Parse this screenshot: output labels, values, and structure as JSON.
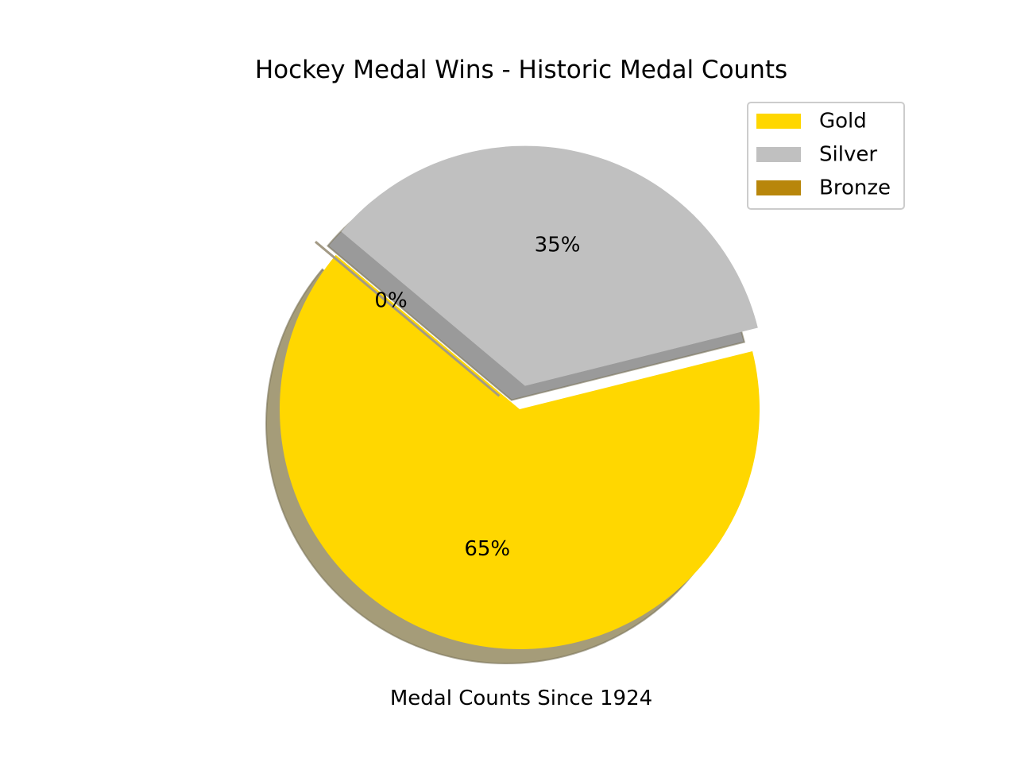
{
  "chart_data": {
    "type": "pie",
    "title": "Hockey Medal Wins - Historic Medal Counts",
    "xlabel": "Medal Counts Since 1924",
    "ylabel": "",
    "start_angle_deg": 140,
    "shadow": true,
    "legend_placement": "top-right",
    "slices": [
      {
        "label": "Gold",
        "value": 65,
        "pct_label": "65%",
        "color": "#FFD700",
        "shadow_color": "#A59C79",
        "explode": 0
      },
      {
        "label": "Silver",
        "value": 35,
        "pct_label": "35%",
        "color": "#C0C0C0",
        "shadow_color": "#9A9A9A",
        "explode": 0.1
      },
      {
        "label": "Bronze",
        "value": 0,
        "pct_label": "0%",
        "color": "#B8860B",
        "shadow_color": "#A39A85",
        "explode": 0.1
      }
    ]
  }
}
